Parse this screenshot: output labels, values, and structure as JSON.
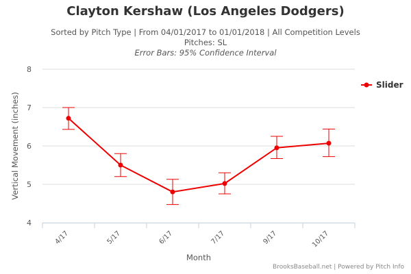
{
  "header": {
    "title": "Clayton Kershaw (Los Angeles Dodgers)",
    "subtitle_line1": "Sorted by Pitch Type | From 04/01/2017 to 01/01/2018 | All Competition Levels",
    "subtitle_line2": "Pitches: SL",
    "subtitle_line3": "Error Bars: 95% Confidence Interval"
  },
  "credits": "BrooksBaseball.net | Powered by Pitch Info",
  "colors": {
    "series": "#ee0000",
    "gridline": "#dddddd",
    "axis": "#c0d0e0"
  },
  "chart_data": {
    "type": "line",
    "title": "Clayton Kershaw (Los Angeles Dodgers)",
    "xlabel": "Month",
    "ylabel": "Vertical Movement (inches)",
    "categories": [
      "4/17",
      "5/17",
      "6/17",
      "7/17",
      "9/17",
      "10/17"
    ],
    "ylim": [
      4,
      8
    ],
    "yticks": [
      4,
      5,
      6,
      7,
      8
    ],
    "grid": true,
    "legend_position": "top-right",
    "series": [
      {
        "name": "Slider",
        "values": [
          6.72,
          5.5,
          4.8,
          5.02,
          5.95,
          6.07
        ],
        "error_low": [
          6.43,
          5.2,
          4.47,
          4.75,
          5.67,
          5.72
        ],
        "error_high": [
          7.0,
          5.8,
          5.13,
          5.3,
          6.25,
          6.44
        ]
      }
    ]
  }
}
